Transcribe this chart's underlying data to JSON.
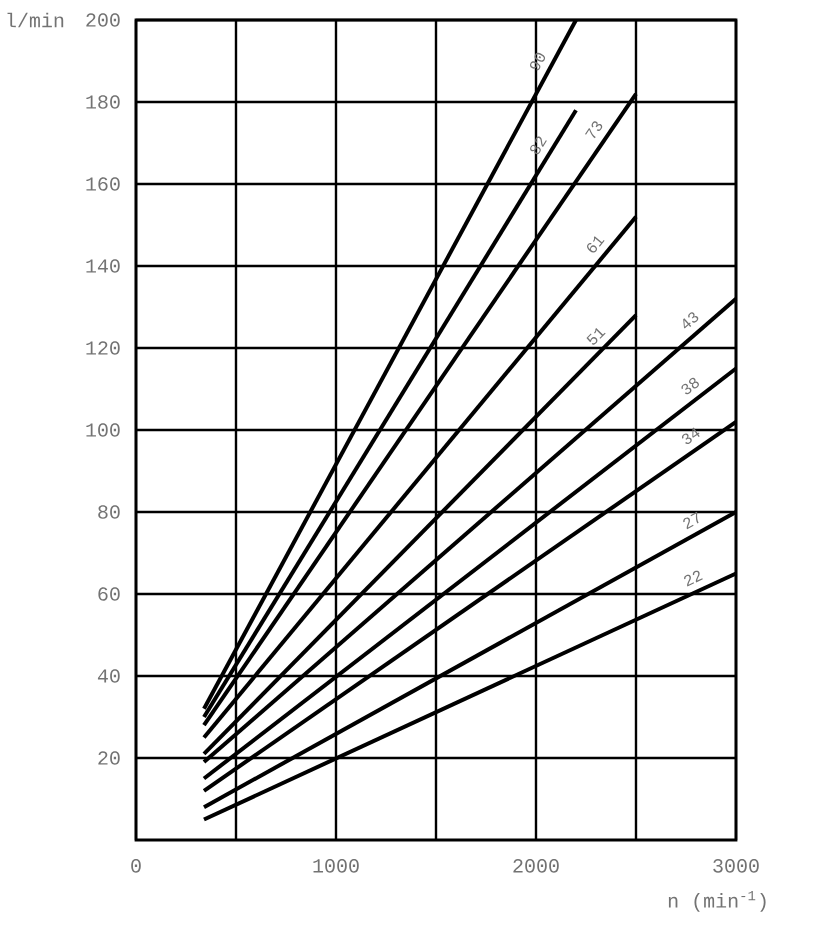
{
  "chart_data": {
    "type": "line",
    "xlabel": "n (min$^{-1}$)",
    "ylabel": "l/min",
    "xlim": [
      0,
      3000
    ],
    "ylim": [
      0,
      200
    ],
    "xticks": [
      0,
      {
        "value": 500,
        "label": null
      },
      1000,
      {
        "value": 1500,
        "label": null
      },
      2000,
      {
        "value": 2500,
        "label": null
      },
      3000
    ],
    "yticks": [
      20,
      40,
      60,
      80,
      100,
      120,
      140,
      160,
      180,
      200
    ],
    "grid": true,
    "marker": "none",
    "line_style": "solid",
    "series": [
      {
        "name": "90",
        "color": "#000000",
        "x": [
          340,
          2200
        ],
        "values": [
          32,
          200
        ]
      },
      {
        "name": "82",
        "color": "#000000",
        "x": [
          340,
          2200
        ],
        "values": [
          30,
          178
        ]
      },
      {
        "name": "73",
        "color": "#000000",
        "x": [
          340,
          2500
        ],
        "values": [
          28,
          182
        ]
      },
      {
        "name": "61",
        "color": "#000000",
        "x": [
          340,
          2500
        ],
        "values": [
          25,
          152
        ]
      },
      {
        "name": "51",
        "color": "#000000",
        "x": [
          340,
          2500
        ],
        "values": [
          21,
          128
        ]
      },
      {
        "name": "43",
        "color": "#000000",
        "x": [
          340,
          3000
        ],
        "values": [
          19,
          132
        ]
      },
      {
        "name": "38",
        "color": "#000000",
        "x": [
          340,
          3000
        ],
        "values": [
          15,
          115
        ]
      },
      {
        "name": "34",
        "color": "#000000",
        "x": [
          340,
          3000
        ],
        "values": [
          12,
          102
        ]
      },
      {
        "name": "27",
        "color": "#000000",
        "x": [
          340,
          3000
        ],
        "values": [
          8,
          80
        ]
      },
      {
        "name": "22",
        "color": "#000000",
        "x": [
          340,
          3000
        ],
        "values": [
          5,
          65
        ]
      }
    ]
  }
}
